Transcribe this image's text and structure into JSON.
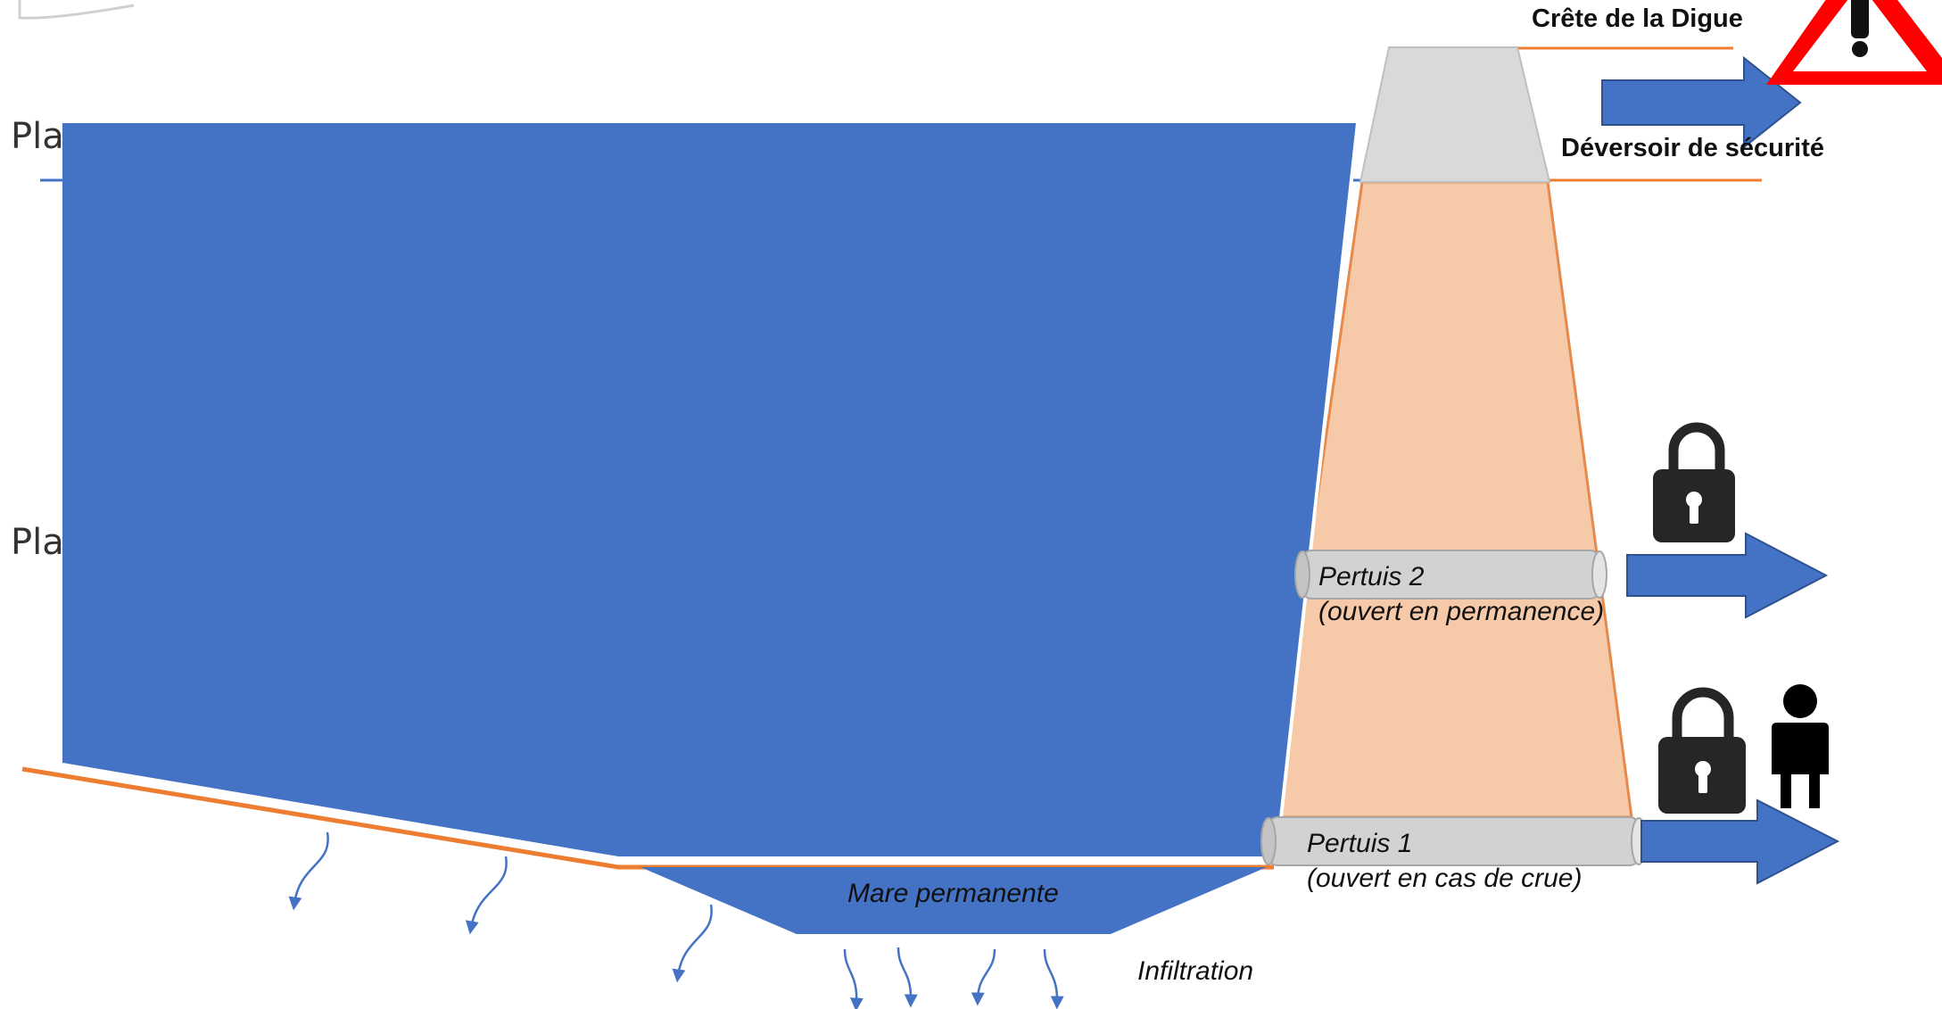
{
  "labels": {
    "crest": "Crête de la Digue",
    "spillway": "Déversoir de sécurité",
    "pertuis2_name": "Pertuis 2",
    "pertuis2_state": "(ouvert en permanence)",
    "pertuis1_name": "Pertuis 1",
    "pertuis1_state": "(ouvert en cas de crue)",
    "pond": "Mare permanente",
    "infiltration": "Infiltration",
    "cut_label_top": "Pla",
    "cut_label_mid": "Pla"
  },
  "icons": {
    "warning": "warning-triangle-icon",
    "unlocked": "padlock-open-icon",
    "locked": "padlock-closed-icon",
    "person": "person-icon"
  },
  "colors": {
    "water": "#4472c4",
    "dam_body": "#f6c9a8",
    "dam_outline": "#e6894a",
    "dam_crest": "#d9d9d9",
    "pipe": "#d2d2d2",
    "ground_line": "#ed7d31",
    "warning": "#ff0000",
    "icon_dark": "#262626"
  }
}
